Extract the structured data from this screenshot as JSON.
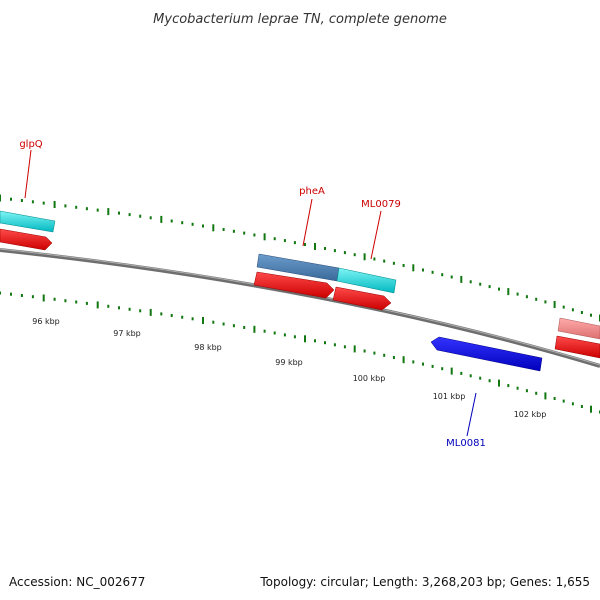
{
  "title": "Mycobacterium leprae TN, complete genome",
  "footer": {
    "accession": "Accession: NC_002677",
    "summary": "Topology: circular; Length: 3,268,203 bp; Genes: 1,655"
  },
  "colors": {
    "backbone": "#808080",
    "tick": "#117711",
    "label_forward": "#cc0000",
    "label_reverse": "#0000bb",
    "cds_red": "#ee1111",
    "gene_cyan": "#11dddd",
    "gene_steelblue": "#4a7fb5",
    "gene_pink": "#ee8888",
    "gene_blue": "#0000ee"
  },
  "scale": {
    "kbp_labels": [
      {
        "kbp": 96,
        "label": "96 kbp"
      },
      {
        "kbp": 97,
        "label": "97 kbp"
      },
      {
        "kbp": 98,
        "label": "98 kbp"
      },
      {
        "kbp": 99,
        "label": "99 kbp"
      },
      {
        "kbp": 100,
        "label": "100 kbp"
      },
      {
        "kbp": 101,
        "label": "101 kbp"
      },
      {
        "kbp": 102,
        "label": "102 kbp"
      }
    ]
  },
  "gene_labels": [
    {
      "name": "glpQ",
      "strand": "forward"
    },
    {
      "name": "pheA",
      "strand": "forward"
    },
    {
      "name": "ML0079",
      "strand": "forward"
    },
    {
      "name": "ML0081",
      "strand": "reverse"
    }
  ],
  "features": [
    {
      "id": "glpQ-gene",
      "color": "gene_cyan",
      "strand": "forward",
      "track": "gene"
    },
    {
      "id": "glpQ-cds",
      "color": "cds_red",
      "strand": "forward",
      "track": "cds"
    },
    {
      "id": "pheA-gene",
      "color": "gene_steelblue",
      "strand": "forward",
      "track": "gene"
    },
    {
      "id": "ML0079-gene",
      "color": "gene_cyan",
      "strand": "forward",
      "track": "gene"
    },
    {
      "id": "pheA-cds",
      "color": "cds_red",
      "strand": "forward",
      "track": "cds"
    },
    {
      "id": "ML0079-cds",
      "color": "cds_red",
      "strand": "forward",
      "track": "cds"
    },
    {
      "id": "next-gene",
      "color": "gene_pink",
      "strand": "forward",
      "track": "gene"
    },
    {
      "id": "next-cds",
      "color": "cds_red",
      "strand": "forward",
      "track": "cds"
    },
    {
      "id": "ML0081-gene",
      "color": "gene_blue",
      "strand": "reverse",
      "track": "gene"
    }
  ]
}
